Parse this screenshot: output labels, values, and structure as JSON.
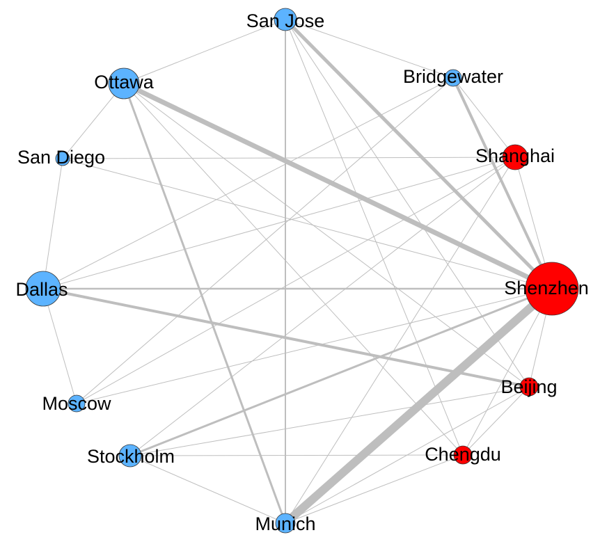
{
  "nodes": [
    {
      "label": "San Jose",
      "color": "#5cb3ff"
    },
    {
      "label": "Bridgewater",
      "color": "#5cb3ff"
    },
    {
      "label": "Shanghai",
      "color": "#ff0000"
    },
    {
      "label": "Shenzhen",
      "color": "#ff0000"
    },
    {
      "label": "Beijing",
      "color": "#ff0000"
    },
    {
      "label": "Chengdu",
      "color": "#ff0000"
    },
    {
      "label": "Munich",
      "color": "#5cb3ff"
    },
    {
      "label": "Stockholm",
      "color": "#5cb3ff"
    },
    {
      "label": "Moscow",
      "color": "#5cb3ff"
    },
    {
      "label": "Dallas",
      "color": "#5cb3ff"
    },
    {
      "label": "San Diego",
      "color": "#5cb3ff"
    },
    {
      "label": "Ottawa",
      "color": "#5cb3ff"
    }
  ],
  "edges": [
    {
      "source": "Ottawa",
      "target": "Shenzhen"
    },
    {
      "source": "Munich",
      "target": "Shenzhen"
    },
    {
      "source": "San Jose",
      "target": "Shenzhen"
    },
    {
      "source": "Dallas",
      "target": "Beijing"
    },
    {
      "source": "Ottawa",
      "target": "Munich"
    },
    {
      "source": "Stockholm",
      "target": "Shenzhen"
    },
    {
      "source": "Bridgewater",
      "target": "Shenzhen"
    },
    {
      "source": "Dallas",
      "target": "Shenzhen"
    },
    {
      "source": "San Jose",
      "target": "Munich"
    },
    {
      "source": "San Jose",
      "target": "Ottawa"
    },
    {
      "source": "San Jose",
      "target": "Bridgewater"
    },
    {
      "source": "San Jose",
      "target": "Beijing"
    },
    {
      "source": "San Jose",
      "target": "Chengdu"
    },
    {
      "source": "Ottawa",
      "target": "San Diego"
    },
    {
      "source": "Ottawa",
      "target": "Beijing"
    },
    {
      "source": "Ottawa",
      "target": "Chengdu"
    },
    {
      "source": "San Diego",
      "target": "Dallas"
    },
    {
      "source": "San Diego",
      "target": "Shanghai"
    },
    {
      "source": "San Diego",
      "target": "Shenzhen"
    },
    {
      "source": "Dallas",
      "target": "Bridgewater"
    },
    {
      "source": "Dallas",
      "target": "Shanghai"
    },
    {
      "source": "Dallas",
      "target": "Moscow"
    },
    {
      "source": "Moscow",
      "target": "Bridgewater"
    },
    {
      "source": "Moscow",
      "target": "Shanghai"
    },
    {
      "source": "Moscow",
      "target": "Shenzhen"
    },
    {
      "source": "Stockholm",
      "target": "Chengdu"
    },
    {
      "source": "Stockholm",
      "target": "Munich"
    },
    {
      "source": "Stockholm",
      "target": "Shanghai"
    },
    {
      "source": "Stockholm",
      "target": "Beijing"
    },
    {
      "source": "Munich",
      "target": "Chengdu"
    },
    {
      "source": "Munich",
      "target": "Shanghai"
    },
    {
      "source": "Munich",
      "target": "Beijing"
    },
    {
      "source": "Chengdu",
      "target": "Shenzhen"
    },
    {
      "source": "Chengdu",
      "target": "Beijing"
    },
    {
      "source": "Beijing",
      "target": "Shenzhen"
    },
    {
      "source": "Shanghai",
      "target": "Shenzhen"
    },
    {
      "source": "Bridgewater",
      "target": "Shanghai"
    }
  ]
}
